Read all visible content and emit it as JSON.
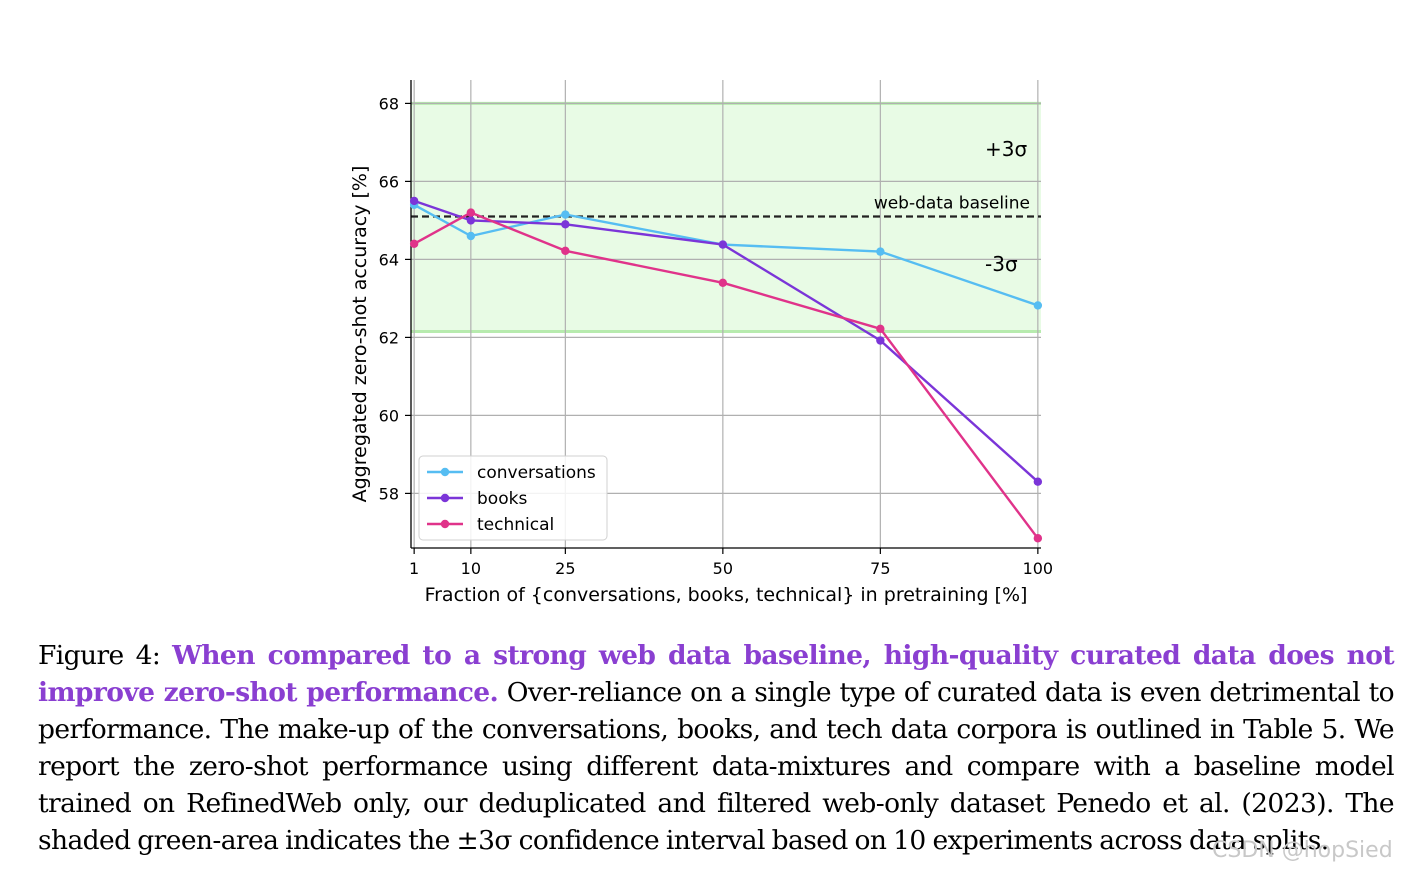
{
  "chart_data": {
    "type": "line",
    "xlabel": "Fraction of {conversations, books, technical} in pretraining [%]",
    "ylabel": "Aggregated zero-shot accuracy [%]",
    "x_ticks": [
      1,
      10,
      25,
      50,
      75,
      100
    ],
    "y_ticks": [
      58,
      60,
      62,
      64,
      66,
      68
    ],
    "xlim": [
      0.5,
      100.5
    ],
    "ylim": [
      56.6,
      68.6
    ],
    "grid": true,
    "legend_position": "lower-left",
    "baseline": {
      "value": 65.1,
      "label": "web-data baseline",
      "color": "#222222"
    },
    "band": {
      "lower": 62.15,
      "upper": 68.0,
      "upper_label": "+3σ",
      "lower_label": "-3σ",
      "color": "#e8fbe5",
      "edge_color": "#b7ebae"
    },
    "series": [
      {
        "name": "conversations",
        "color": "#56bdf2",
        "x": [
          1,
          10,
          25,
          50,
          75,
          100
        ],
        "y": [
          65.4,
          64.6,
          65.15,
          64.38,
          64.2,
          62.82
        ]
      },
      {
        "name": "books",
        "color": "#7b35d8",
        "x": [
          1,
          10,
          25,
          50,
          75,
          100
        ],
        "y": [
          65.5,
          65.0,
          64.9,
          64.38,
          61.92,
          58.3
        ]
      },
      {
        "name": "technical",
        "color": "#e0338a",
        "x": [
          1,
          10,
          25,
          50,
          75,
          100
        ],
        "y": [
          64.4,
          65.2,
          64.22,
          63.4,
          62.22,
          56.85
        ]
      }
    ]
  },
  "caption": {
    "label": "Figure 4:",
    "lead": "When compared to a strong web data baseline, high-quality curated data does not improve zero-shot performance.",
    "body": "Over-reliance on a single type of curated data is even detrimental to performance. The make-up of the conversations, books, and tech data corpora is outlined in Table 5. We report the zero-shot performance using different data-mixtures and compare with a baseline model trained on RefinedWeb only, our deduplicated and filtered web-only dataset Penedo et al. (2023). The shaded green-area indicates the ±3σ confidence interval based on 10 experiments across data splits."
  },
  "watermark": "CSDN @hopSied"
}
